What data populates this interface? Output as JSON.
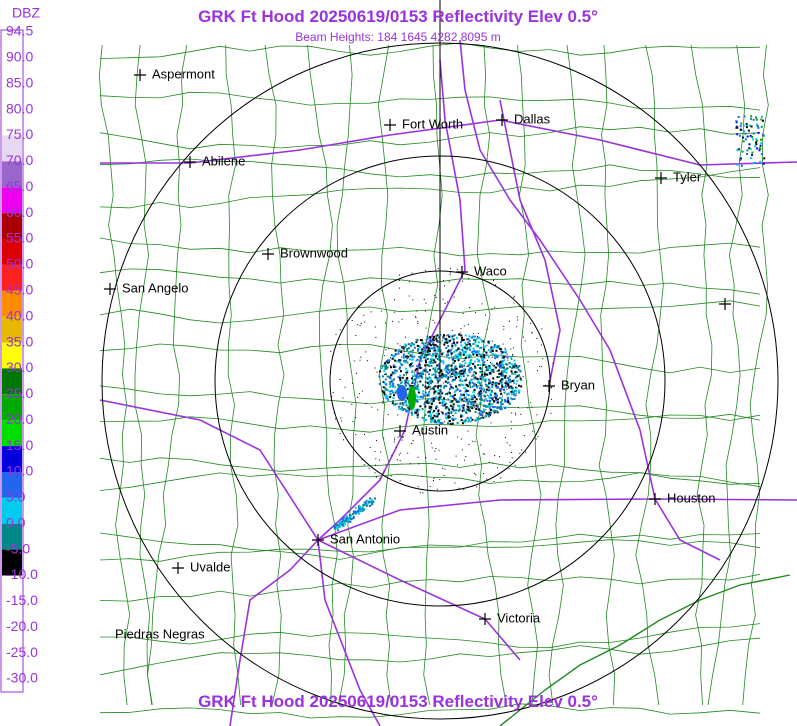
{
  "header": {
    "title": "GRK Ft Hood 20250619/0153 Reflectivity Elev 0.5°",
    "subtitle": "Beam Heights: 184 1645 4282 8095 m"
  },
  "footer": {
    "title": "GRK Ft Hood 20250619/0153 Reflectivity Elev 0.5°"
  },
  "legend": {
    "unit": "DBZ",
    "scale": [
      {
        "label": "94.5",
        "color": "#ffffff"
      },
      {
        "label": "90.0",
        "color": "#ffffff"
      },
      {
        "label": "85.0",
        "color": "#ffffff"
      },
      {
        "label": "80.0",
        "color": "#ffffff"
      },
      {
        "label": "75.0",
        "color": "#e6d8f0"
      },
      {
        "label": "70.0",
        "color": "#9966cc"
      },
      {
        "label": "65.0",
        "color": "#ee00ee"
      },
      {
        "label": "60.0",
        "color": "#aa0000"
      },
      {
        "label": "55.0",
        "color": "#dd0000"
      },
      {
        "label": "50.0",
        "color": "#ff2020"
      },
      {
        "label": "45.0",
        "color": "#ff8c00"
      },
      {
        "label": "40.0",
        "color": "#e6b800"
      },
      {
        "label": "35.0",
        "color": "#ffff00"
      },
      {
        "label": "30.0",
        "color": "#007700"
      },
      {
        "label": "25.0",
        "color": "#00aa00"
      },
      {
        "label": "20.0",
        "color": "#00dd00"
      },
      {
        "label": "15.0",
        "color": "#0000dd"
      },
      {
        "label": "10.0",
        "color": "#2266ee"
      },
      {
        "label": "5.0",
        "color": "#00ccee"
      },
      {
        "label": "0.0",
        "color": "#008888"
      },
      {
        "label": "-5.0",
        "color": "#000000"
      },
      {
        "label": "-10.0",
        "color": "#ffffff"
      },
      {
        "label": "-15.0",
        "color": "#ffffff"
      },
      {
        "label": "-20.0",
        "color": "#ffffff"
      },
      {
        "label": "-25.0",
        "color": "#ffffff"
      },
      {
        "label": "-30.0",
        "color": "#ffffff"
      }
    ]
  },
  "cities": [
    {
      "label": "Aspermont"
    },
    {
      "label": "Fort Worth"
    },
    {
      "label": "Dallas"
    },
    {
      "label": "Abilene"
    },
    {
      "label": "Tyler"
    },
    {
      "label": "Brownwood"
    },
    {
      "label": "Waco"
    },
    {
      "label": "San Angelo"
    },
    {
      "label": "Bryan"
    },
    {
      "label": "Austin"
    },
    {
      "label": "Houston"
    },
    {
      "label": "San Antonio"
    },
    {
      "label": "Uvalde"
    },
    {
      "label": "Victoria"
    },
    {
      "label": "Piedras Negras"
    }
  ]
}
